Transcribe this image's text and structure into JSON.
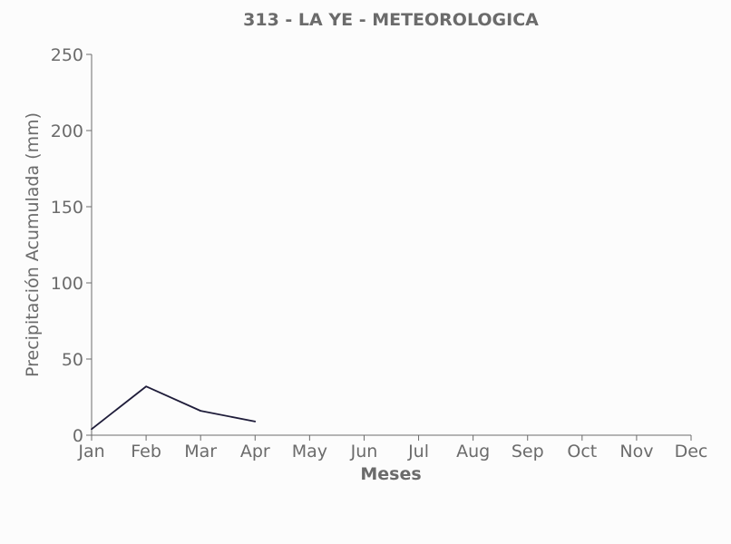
{
  "chart_data": {
    "type": "line",
    "title": "313 - LA YE - METEOROLOGICA",
    "xlabel": "Meses",
    "ylabel": "Precipitación Acumulada (mm)",
    "categories": [
      "Jan",
      "Feb",
      "Mar",
      "Apr",
      "May",
      "Jun",
      "Jul",
      "Aug",
      "Sep",
      "Oct",
      "Nov",
      "Dec"
    ],
    "ylim": [
      0,
      250
    ],
    "yticks": [
      0,
      50,
      100,
      150,
      200,
      250
    ],
    "grid": false,
    "series": [
      {
        "values": [
          4,
          32,
          16,
          9,
          null,
          null,
          null,
          null,
          null,
          null,
          null,
          null
        ],
        "color": "#1f1d3a"
      }
    ]
  }
}
